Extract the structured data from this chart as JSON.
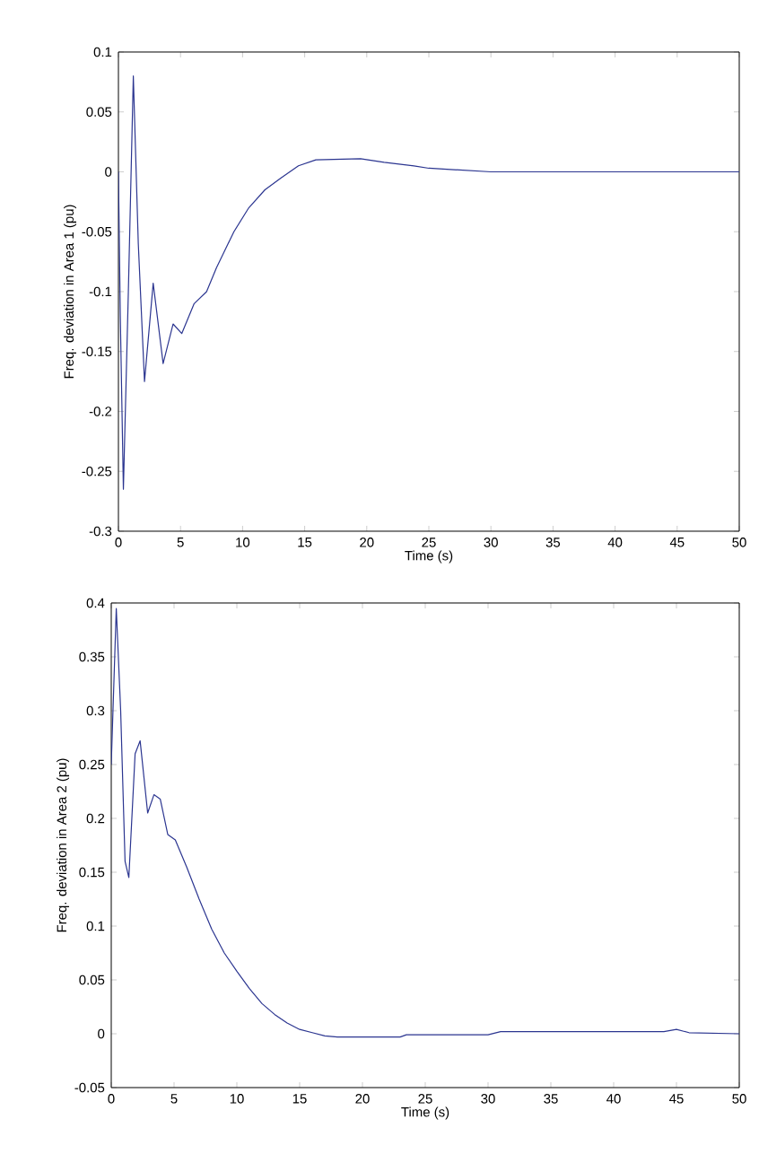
{
  "chart_data": [
    {
      "type": "line",
      "xlabel": "Time (s)",
      "ylabel": "Freq. deviation in Area 1 (pu)",
      "xlim": [
        0,
        50
      ],
      "ylim": [
        -0.3,
        0.1
      ],
      "xticks": [
        0,
        5,
        10,
        15,
        20,
        25,
        30,
        35,
        40,
        45,
        50
      ],
      "yticks": [
        -0.3,
        -0.25,
        -0.2,
        -0.15,
        -0.1,
        -0.05,
        0,
        0.05,
        0.1
      ],
      "grid": false,
      "series": [
        {
          "color": "#2b3590",
          "x": [
            0,
            0.15,
            0.4,
            0.8,
            1.2,
            1.6,
            2.1,
            2.8,
            3.6,
            4.4,
            5.1,
            6.1,
            7.1,
            7.9,
            9.3,
            10.5,
            11.8,
            13.1,
            14.5,
            15.9,
            19.5,
            21.4,
            23.8,
            25,
            30,
            35,
            40,
            45,
            50
          ],
          "values": [
            0,
            -0.12,
            -0.265,
            -0.1,
            0.08,
            -0.06,
            -0.175,
            -0.093,
            -0.16,
            -0.127,
            -0.135,
            -0.11,
            -0.1,
            -0.08,
            -0.05,
            -0.03,
            -0.015,
            -0.005,
            0.005,
            0.01,
            0.011,
            0.008,
            0.005,
            0.003,
            0,
            0,
            0,
            0,
            0
          ]
        }
      ]
    },
    {
      "type": "line",
      "xlabel": "Time (s)",
      "ylabel": "Freq. deviation in Area 2 (pu)",
      "xlim": [
        0,
        50
      ],
      "ylim": [
        -0.05,
        0.4
      ],
      "xticks": [
        0,
        5,
        10,
        15,
        20,
        25,
        30,
        35,
        40,
        45,
        50
      ],
      "yticks": [
        -0.05,
        0,
        0.05,
        0.1,
        0.15,
        0.2,
        0.25,
        0.3,
        0.35,
        0.4
      ],
      "grid": false,
      "series": [
        {
          "color": "#2b3590",
          "x": [
            0,
            0.4,
            0.75,
            1.1,
            1.4,
            1.9,
            2.3,
            2.9,
            3.4,
            3.9,
            4.5,
            5.1,
            6,
            7,
            8,
            9,
            10,
            11,
            12,
            13,
            14,
            15,
            16,
            17,
            18,
            23,
            23.5,
            30,
            31,
            44,
            45,
            46,
            50
          ],
          "values": [
            0.25,
            0.395,
            0.3,
            0.16,
            0.145,
            0.26,
            0.272,
            0.205,
            0.222,
            0.218,
            0.185,
            0.18,
            0.155,
            0.125,
            0.097,
            0.075,
            0.058,
            0.042,
            0.028,
            0.018,
            0.01,
            0.004,
            0.001,
            -0.002,
            -0.003,
            -0.003,
            -0.001,
            -0.001,
            0.002,
            0.002,
            0.004,
            0.001,
            0
          ]
        }
      ]
    }
  ]
}
